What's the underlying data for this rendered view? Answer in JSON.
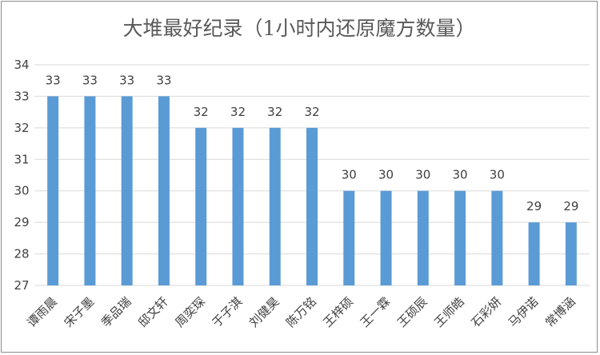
{
  "chart_data": {
    "type": "bar",
    "title": "大堆最好纪录（1小时内还原魔方数量）",
    "xlabel": "",
    "ylabel": "",
    "categories": [
      "谭雨晨",
      "宋子墨",
      "季品瑞",
      "邸文轩",
      "周奕琛",
      "于子淇",
      "刘健昊",
      "陈万铭",
      "王梓硕",
      "王一霖",
      "王硕辰",
      "王师皓",
      "石彩妍",
      "马伊诺",
      "常博涵"
    ],
    "values": [
      33,
      33,
      33,
      33,
      32,
      32,
      32,
      32,
      30,
      30,
      30,
      30,
      30,
      29,
      29
    ],
    "ylim": [
      27,
      34
    ],
    "yticks": [
      27,
      28,
      29,
      30,
      31,
      32,
      33,
      34
    ],
    "grid": true,
    "legend": "none",
    "bar_color": "#5b9bd5"
  }
}
